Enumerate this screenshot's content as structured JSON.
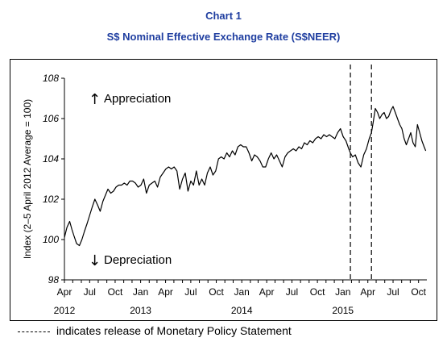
{
  "header": {
    "chart_number": "Chart 1",
    "title": "S$ Nominal Effective Exchange Rate (S$NEER)"
  },
  "footnote": {
    "text": "indicates release of Monetary Policy Statement"
  },
  "chart_data": {
    "type": "line",
    "title": "S$ Nominal Effective Exchange Rate (S$NEER)",
    "xlabel": "",
    "ylabel": "Index (2–5 April 2012 Average = 100)",
    "ylim": [
      98,
      108
    ],
    "yticks": [
      98,
      100,
      102,
      104,
      106,
      108
    ],
    "xlim": [
      "2012-04-01",
      "2015-10-31"
    ],
    "month_ticks": [
      {
        "date": "2012-04-01",
        "label": "Apr"
      },
      {
        "date": "2012-07-01",
        "label": "Jul"
      },
      {
        "date": "2012-10-01",
        "label": "Oct"
      },
      {
        "date": "2013-01-01",
        "label": "Jan"
      },
      {
        "date": "2013-04-01",
        "label": "Apr"
      },
      {
        "date": "2013-07-01",
        "label": "Jul"
      },
      {
        "date": "2013-10-01",
        "label": "Oct"
      },
      {
        "date": "2014-01-01",
        "label": "Jan"
      },
      {
        "date": "2014-04-01",
        "label": "Apr"
      },
      {
        "date": "2014-07-01",
        "label": "Jul"
      },
      {
        "date": "2014-10-01",
        "label": "Oct"
      },
      {
        "date": "2015-01-01",
        "label": "Jan"
      },
      {
        "date": "2015-04-01",
        "label": "Apr"
      },
      {
        "date": "2015-07-01",
        "label": "Jul"
      },
      {
        "date": "2015-10-01",
        "label": "Oct"
      }
    ],
    "year_labels": [
      {
        "date": "2012-04-01",
        "label": "2012"
      },
      {
        "date": "2013-01-01",
        "label": "2013"
      },
      {
        "date": "2014-01-01",
        "label": "2014"
      },
      {
        "date": "2015-01-01",
        "label": "2015"
      }
    ],
    "annotations": {
      "appreciation": {
        "text": "Appreciation",
        "arrow": "↑"
      },
      "depreciation": {
        "text": "Depreciation",
        "arrow": "↓"
      }
    },
    "mps_release_dates": [
      "2015-01-28",
      "2015-04-14"
    ],
    "series": [
      {
        "color": "#000000",
        "points": [
          [
            "2012-04-01",
            100.1
          ],
          [
            "2012-04-10",
            100.6
          ],
          [
            "2012-04-20",
            100.9
          ],
          [
            "2012-04-28",
            100.5
          ],
          [
            "2012-05-05",
            100.2
          ],
          [
            "2012-05-15",
            99.8
          ],
          [
            "2012-05-25",
            99.7
          ],
          [
            "2012-06-03",
            100.0
          ],
          [
            "2012-06-12",
            100.4
          ],
          [
            "2012-06-22",
            100.8
          ],
          [
            "2012-07-01",
            101.2
          ],
          [
            "2012-07-10",
            101.6
          ],
          [
            "2012-07-20",
            102.0
          ],
          [
            "2012-07-30",
            101.7
          ],
          [
            "2012-08-08",
            101.4
          ],
          [
            "2012-08-18",
            101.9
          ],
          [
            "2012-08-27",
            102.2
          ],
          [
            "2012-09-05",
            102.5
          ],
          [
            "2012-09-15",
            102.3
          ],
          [
            "2012-09-25",
            102.4
          ],
          [
            "2012-10-04",
            102.6
          ],
          [
            "2012-10-14",
            102.7
          ],
          [
            "2012-10-24",
            102.7
          ],
          [
            "2012-11-03",
            102.8
          ],
          [
            "2012-11-13",
            102.7
          ],
          [
            "2012-11-23",
            102.9
          ],
          [
            "2012-12-03",
            102.9
          ],
          [
            "2012-12-13",
            102.8
          ],
          [
            "2012-12-23",
            102.6
          ],
          [
            "2013-01-02",
            102.7
          ],
          [
            "2013-01-12",
            103.0
          ],
          [
            "2013-01-22",
            102.3
          ],
          [
            "2013-02-01",
            102.7
          ],
          [
            "2013-02-11",
            102.8
          ],
          [
            "2013-02-21",
            102.9
          ],
          [
            "2013-03-03",
            102.6
          ],
          [
            "2013-03-13",
            103.1
          ],
          [
            "2013-03-23",
            103.3
          ],
          [
            "2013-04-02",
            103.5
          ],
          [
            "2013-04-12",
            103.6
          ],
          [
            "2013-04-22",
            103.5
          ],
          [
            "2013-05-02",
            103.6
          ],
          [
            "2013-05-12",
            103.4
          ],
          [
            "2013-05-22",
            102.5
          ],
          [
            "2013-06-01",
            103.0
          ],
          [
            "2013-06-11",
            103.3
          ],
          [
            "2013-06-21",
            102.4
          ],
          [
            "2013-07-01",
            102.9
          ],
          [
            "2013-07-11",
            102.7
          ],
          [
            "2013-07-21",
            103.4
          ],
          [
            "2013-07-31",
            102.7
          ],
          [
            "2013-08-10",
            103.0
          ],
          [
            "2013-08-20",
            102.7
          ],
          [
            "2013-08-30",
            103.3
          ],
          [
            "2013-09-09",
            103.6
          ],
          [
            "2013-09-19",
            103.2
          ],
          [
            "2013-09-29",
            103.4
          ],
          [
            "2013-10-09",
            104.0
          ],
          [
            "2013-10-19",
            104.1
          ],
          [
            "2013-10-29",
            104.0
          ],
          [
            "2013-11-08",
            104.3
          ],
          [
            "2013-11-18",
            104.1
          ],
          [
            "2013-11-28",
            104.4
          ],
          [
            "2013-12-08",
            104.2
          ],
          [
            "2013-12-18",
            104.6
          ],
          [
            "2013-12-28",
            104.7
          ],
          [
            "2014-01-07",
            104.6
          ],
          [
            "2014-01-17",
            104.6
          ],
          [
            "2014-01-27",
            104.3
          ],
          [
            "2014-02-06",
            103.9
          ],
          [
            "2014-02-16",
            104.2
          ],
          [
            "2014-02-26",
            104.1
          ],
          [
            "2014-03-08",
            103.9
          ],
          [
            "2014-03-18",
            103.6
          ],
          [
            "2014-03-28",
            103.6
          ],
          [
            "2014-04-07",
            104.0
          ],
          [
            "2014-04-17",
            104.3
          ],
          [
            "2014-04-27",
            104.0
          ],
          [
            "2014-05-07",
            104.2
          ],
          [
            "2014-05-17",
            103.9
          ],
          [
            "2014-05-27",
            103.6
          ],
          [
            "2014-06-06",
            104.1
          ],
          [
            "2014-06-16",
            104.3
          ],
          [
            "2014-06-26",
            104.4
          ],
          [
            "2014-07-06",
            104.5
          ],
          [
            "2014-07-16",
            104.4
          ],
          [
            "2014-07-26",
            104.6
          ],
          [
            "2014-08-05",
            104.5
          ],
          [
            "2014-08-15",
            104.8
          ],
          [
            "2014-08-25",
            104.7
          ],
          [
            "2014-09-04",
            104.9
          ],
          [
            "2014-09-14",
            104.8
          ],
          [
            "2014-09-24",
            105.0
          ],
          [
            "2014-10-04",
            105.1
          ],
          [
            "2014-10-14",
            105.0
          ],
          [
            "2014-10-24",
            105.2
          ],
          [
            "2014-11-03",
            105.1
          ],
          [
            "2014-11-13",
            105.2
          ],
          [
            "2014-11-23",
            105.1
          ],
          [
            "2014-12-03",
            105.0
          ],
          [
            "2014-12-13",
            105.3
          ],
          [
            "2014-12-23",
            105.5
          ],
          [
            "2015-01-02",
            105.1
          ],
          [
            "2015-01-12",
            104.9
          ],
          [
            "2015-01-22",
            104.5
          ],
          [
            "2015-01-28",
            104.3
          ],
          [
            "2015-02-05",
            104.1
          ],
          [
            "2015-02-15",
            104.2
          ],
          [
            "2015-02-25",
            103.8
          ],
          [
            "2015-03-07",
            103.6
          ],
          [
            "2015-03-17",
            104.2
          ],
          [
            "2015-03-27",
            104.5
          ],
          [
            "2015-04-06",
            105.0
          ],
          [
            "2015-04-14",
            105.3
          ],
          [
            "2015-04-20",
            105.8
          ],
          [
            "2015-04-28",
            106.5
          ],
          [
            "2015-05-06",
            106.3
          ],
          [
            "2015-05-14",
            106.0
          ],
          [
            "2015-05-22",
            106.2
          ],
          [
            "2015-05-30",
            106.3
          ],
          [
            "2015-06-07",
            106.0
          ],
          [
            "2015-06-15",
            106.1
          ],
          [
            "2015-06-23",
            106.4
          ],
          [
            "2015-07-01",
            106.6
          ],
          [
            "2015-07-09",
            106.3
          ],
          [
            "2015-07-17",
            106.0
          ],
          [
            "2015-07-25",
            105.7
          ],
          [
            "2015-08-02",
            105.5
          ],
          [
            "2015-08-10",
            105.0
          ],
          [
            "2015-08-18",
            104.7
          ],
          [
            "2015-08-26",
            105.0
          ],
          [
            "2015-09-03",
            105.3
          ],
          [
            "2015-09-11",
            104.8
          ],
          [
            "2015-09-19",
            104.6
          ],
          [
            "2015-09-27",
            105.7
          ],
          [
            "2015-10-05",
            105.3
          ],
          [
            "2015-10-13",
            104.9
          ],
          [
            "2015-10-21",
            104.6
          ],
          [
            "2015-10-27",
            104.4
          ]
        ]
      }
    ]
  }
}
